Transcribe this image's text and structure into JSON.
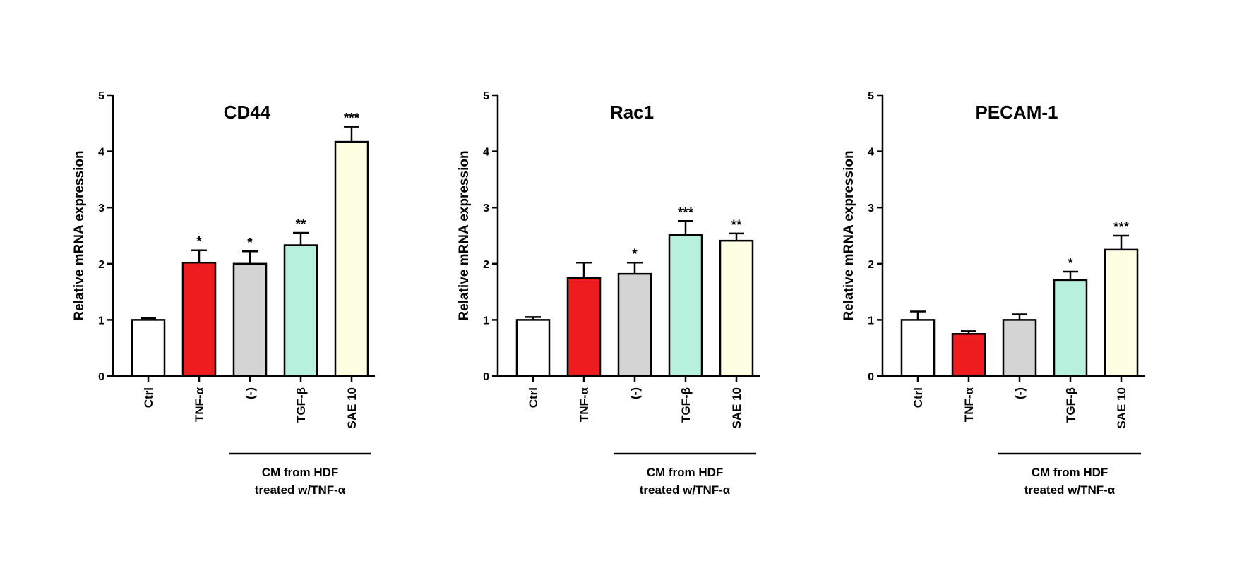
{
  "panel_ylabel": "Relative mRNA expression",
  "colors": {
    "Ctrl": "#ffffff",
    "TNF-α": "#ee1c1c",
    "(-)": "#d4d4d4",
    "TGF-β": "#b7f0dc",
    "SAE 10": "#ffffe3"
  },
  "bracket": {
    "line1": "CM from HDF",
    "line2": "treated w/TNF-α",
    "spans_categories": [
      "(-)",
      "TGF-β",
      "SAE 10"
    ]
  },
  "chart_data": [
    {
      "type": "bar",
      "title": "CD44",
      "ylabel": "Relative mRNA expression",
      "ylim": [
        0,
        5
      ],
      "yticks": [
        "0",
        "1",
        "2",
        "3",
        "4",
        "5"
      ],
      "categories": [
        "Ctrl",
        "TNF-α",
        "(-)",
        "TGF-β",
        "SAE 10"
      ],
      "values": [
        1.0,
        2.02,
        2.0,
        2.33,
        4.17
      ],
      "errors": [
        0.03,
        0.22,
        0.22,
        0.22,
        0.27
      ],
      "significance": [
        "",
        "*",
        "*",
        "**",
        "***"
      ]
    },
    {
      "type": "bar",
      "title": "Rac1",
      "ylabel": "Relative mRNA expression",
      "ylim": [
        0,
        5
      ],
      "yticks": [
        "0",
        "1",
        "2",
        "3",
        "4",
        "5"
      ],
      "categories": [
        "Ctrl",
        "TNF-α",
        "(-)",
        "TGF-β",
        "SAE 10"
      ],
      "values": [
        1.0,
        1.75,
        1.82,
        2.51,
        2.41
      ],
      "errors": [
        0.05,
        0.27,
        0.2,
        0.25,
        0.13
      ],
      "significance": [
        "",
        "",
        "*",
        "***",
        "**"
      ]
    },
    {
      "type": "bar",
      "title": "PECAM-1",
      "ylabel": "Relative mRNA expression",
      "ylim": [
        0,
        5
      ],
      "yticks": [
        "0",
        "1",
        "2",
        "3",
        "4",
        "5"
      ],
      "categories": [
        "Ctrl",
        "TNF-α",
        "(-)",
        "TGF-β",
        "SAE 10"
      ],
      "values": [
        1.0,
        0.75,
        1.0,
        1.71,
        2.25
      ],
      "errors": [
        0.15,
        0.05,
        0.1,
        0.15,
        0.25
      ],
      "significance": [
        "",
        "",
        "",
        "*",
        "***"
      ]
    }
  ]
}
